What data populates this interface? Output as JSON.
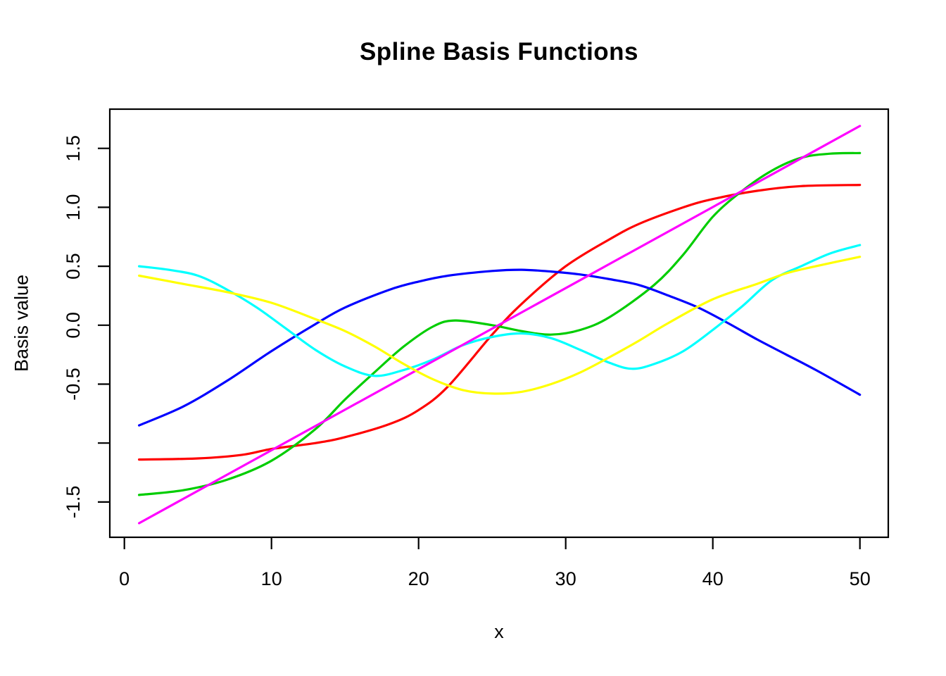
{
  "chart_data": {
    "type": "line",
    "title": "Spline Basis Functions",
    "xlabel": "x",
    "ylabel": "Basis value",
    "grid": false,
    "legend": "none",
    "xlim": [
      -1,
      52
    ],
    "ylim": [
      -1.8,
      1.83
    ],
    "x_data_range": [
      1,
      50
    ],
    "axis_color": "#000000",
    "x_ticks": [
      {
        "v": 0,
        "label": "0"
      },
      {
        "v": 10,
        "label": "10"
      },
      {
        "v": 20,
        "label": "20"
      },
      {
        "v": 30,
        "label": "30"
      },
      {
        "v": 40,
        "label": "40"
      },
      {
        "v": 50,
        "label": "50"
      }
    ],
    "y_ticks": [
      {
        "v": 1.5,
        "label": "1.5"
      },
      {
        "v": 1.0,
        "label": "1.0"
      },
      {
        "v": 0.5,
        "label": "0.5"
      },
      {
        "v": 0.0,
        "label": "0.0"
      },
      {
        "v": -0.5,
        "label": "-0.5"
      },
      {
        "v": -1.0,
        "label": ""
      },
      {
        "v": -1.5,
        "label": "-1.5"
      }
    ],
    "series": [
      {
        "name": "red",
        "color": "#FF0000",
        "points": [
          [
            1,
            -1.14
          ],
          [
            5,
            -1.13
          ],
          [
            8,
            -1.1
          ],
          [
            10,
            -1.05
          ],
          [
            13,
            -1.0
          ],
          [
            15,
            -0.95
          ],
          [
            18,
            -0.84
          ],
          [
            20,
            -0.72
          ],
          [
            22,
            -0.52
          ],
          [
            25,
            -0.08
          ],
          [
            27,
            0.18
          ],
          [
            30,
            0.5
          ],
          [
            33,
            0.73
          ],
          [
            35,
            0.86
          ],
          [
            38,
            1.0
          ],
          [
            40,
            1.07
          ],
          [
            43,
            1.14
          ],
          [
            46,
            1.18
          ],
          [
            50,
            1.19
          ]
        ]
      },
      {
        "name": "green",
        "color": "#00CD00",
        "points": [
          [
            1,
            -1.44
          ],
          [
            4,
            -1.4
          ],
          [
            7,
            -1.31
          ],
          [
            10,
            -1.15
          ],
          [
            13,
            -0.88
          ],
          [
            15,
            -0.63
          ],
          [
            17,
            -0.4
          ],
          [
            19,
            -0.18
          ],
          [
            21,
            -0.01
          ],
          [
            22.5,
            0.04
          ],
          [
            25,
            0.0
          ],
          [
            27,
            -0.05
          ],
          [
            29,
            -0.08
          ],
          [
            31,
            -0.04
          ],
          [
            33,
            0.07
          ],
          [
            36,
            0.34
          ],
          [
            38,
            0.6
          ],
          [
            40,
            0.92
          ],
          [
            42,
            1.14
          ],
          [
            44,
            1.31
          ],
          [
            46,
            1.42
          ],
          [
            48,
            1.455
          ],
          [
            50,
            1.46
          ]
        ]
      },
      {
        "name": "blue",
        "color": "#0000FF",
        "points": [
          [
            1,
            -0.85
          ],
          [
            4,
            -0.69
          ],
          [
            7,
            -0.47
          ],
          [
            10,
            -0.22
          ],
          [
            13,
            0.01
          ],
          [
            15,
            0.15
          ],
          [
            18,
            0.3
          ],
          [
            20,
            0.37
          ],
          [
            22,
            0.42
          ],
          [
            25,
            0.46
          ],
          [
            27,
            0.47
          ],
          [
            29,
            0.455
          ],
          [
            31,
            0.43
          ],
          [
            33,
            0.39
          ],
          [
            35,
            0.34
          ],
          [
            37,
            0.25
          ],
          [
            39,
            0.15
          ],
          [
            41,
            0.02
          ],
          [
            43,
            -0.12
          ],
          [
            45,
            -0.25
          ],
          [
            47,
            -0.38
          ],
          [
            50,
            -0.59
          ]
        ]
      },
      {
        "name": "cyan",
        "color": "#00FFFF",
        "points": [
          [
            1,
            0.5
          ],
          [
            3,
            0.47
          ],
          [
            5,
            0.42
          ],
          [
            7,
            0.3
          ],
          [
            9,
            0.15
          ],
          [
            11,
            -0.03
          ],
          [
            13,
            -0.21
          ],
          [
            15,
            -0.35
          ],
          [
            17,
            -0.43
          ],
          [
            19,
            -0.38
          ],
          [
            21,
            -0.29
          ],
          [
            23,
            -0.17
          ],
          [
            25,
            -0.1
          ],
          [
            27,
            -0.07
          ],
          [
            29,
            -0.11
          ],
          [
            31,
            -0.21
          ],
          [
            33,
            -0.32
          ],
          [
            34.5,
            -0.37
          ],
          [
            36,
            -0.33
          ],
          [
            38,
            -0.22
          ],
          [
            40,
            -0.04
          ],
          [
            42,
            0.16
          ],
          [
            44,
            0.38
          ],
          [
            46,
            0.5
          ],
          [
            48,
            0.61
          ],
          [
            50,
            0.68
          ]
        ]
      },
      {
        "name": "magenta",
        "color": "#FF00FF",
        "points": [
          [
            1,
            -1.68
          ],
          [
            50,
            1.69
          ]
        ]
      },
      {
        "name": "yellow",
        "color": "#FFFF00",
        "points": [
          [
            1,
            0.42
          ],
          [
            4,
            0.35
          ],
          [
            7,
            0.28
          ],
          [
            10,
            0.19
          ],
          [
            13,
            0.05
          ],
          [
            15,
            -0.05
          ],
          [
            17,
            -0.18
          ],
          [
            19,
            -0.33
          ],
          [
            21,
            -0.46
          ],
          [
            23,
            -0.55
          ],
          [
            25,
            -0.58
          ],
          [
            27,
            -0.565
          ],
          [
            29,
            -0.5
          ],
          [
            31,
            -0.4
          ],
          [
            33,
            -0.27
          ],
          [
            35,
            -0.13
          ],
          [
            37,
            0.02
          ],
          [
            40,
            0.22
          ],
          [
            43,
            0.35
          ],
          [
            45,
            0.44
          ],
          [
            47,
            0.5
          ],
          [
            50,
            0.58
          ]
        ]
      }
    ]
  }
}
